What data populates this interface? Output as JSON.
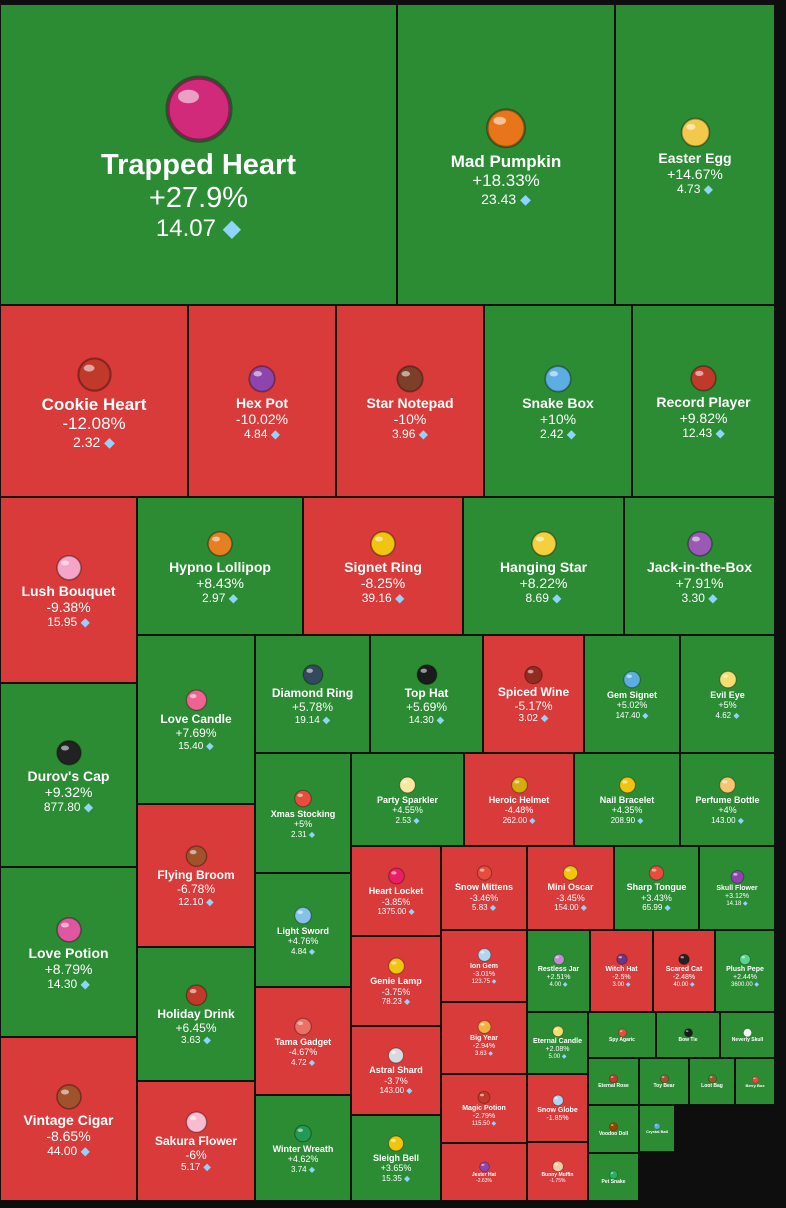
{
  "colors": {
    "up": "#2b8c34",
    "down": "#d93a3a",
    "border": "#111111",
    "diamond": "#8fd3ff"
  },
  "currency_icon": "diamond-icon",
  "chart_data": {
    "type": "treemap",
    "value_unit": "diamond",
    "items": [
      {
        "name": "Trapped Heart",
        "change": "+27.9%",
        "price": "14.07",
        "icon": "heart-in-web-icon",
        "color": "#d22a7a"
      },
      {
        "name": "Mad Pumpkin",
        "change": "+18.33%",
        "price": "23.43",
        "icon": "pumpkin-icon",
        "color": "#e8751a"
      },
      {
        "name": "Easter Egg",
        "change": "+14.67%",
        "price": "4.73",
        "icon": "easter-egg-icon",
        "color": "#f2c94c"
      },
      {
        "name": "Cookie Heart",
        "change": "-12.08%",
        "price": "2.32",
        "icon": "cookie-heart-icon",
        "color": "#c0392b"
      },
      {
        "name": "Hex Pot",
        "change": "-10.02%",
        "price": "4.84",
        "icon": "cauldron-icon",
        "color": "#8e44ad"
      },
      {
        "name": "Star Notepad",
        "change": "-10%",
        "price": "3.96",
        "icon": "notepad-icon",
        "color": "#7b3f2a"
      },
      {
        "name": "Snake Box",
        "change": "+10%",
        "price": "2.42",
        "icon": "gift-box-icon",
        "color": "#5dade2"
      },
      {
        "name": "Record Player",
        "change": "+9.82%",
        "price": "12.43",
        "icon": "record-player-icon",
        "color": "#c0392b"
      },
      {
        "name": "Lush Bouquet",
        "change": "-9.38%",
        "price": "15.95",
        "icon": "bouquet-icon",
        "color": "#f5a6c8"
      },
      {
        "name": "Hypno Lollipop",
        "change": "+8.43%",
        "price": "2.97",
        "icon": "lollipop-icon",
        "color": "#e67e22"
      },
      {
        "name": "Signet Ring",
        "change": "-8.25%",
        "price": "39.16",
        "icon": "ring-icon",
        "color": "#f1c40f"
      },
      {
        "name": "Hanging Star",
        "change": "+8.22%",
        "price": "8.69",
        "icon": "star-icon",
        "color": "#f4d03f"
      },
      {
        "name": "Jack-in-the-Box",
        "change": "+7.91%",
        "price": "3.30",
        "icon": "jack-in-the-box-icon",
        "color": "#9b59b6"
      },
      {
        "name": "Durov's Cap",
        "change": "+9.32%",
        "price": "877.80",
        "icon": "cap-icon",
        "color": "#222222"
      },
      {
        "name": "Love Candle",
        "change": "+7.69%",
        "price": "15.40",
        "icon": "candle-icon",
        "color": "#f06292"
      },
      {
        "name": "Diamond Ring",
        "change": "+5.78%",
        "price": "19.14",
        "icon": "ring-box-icon",
        "color": "#34495e"
      },
      {
        "name": "Top Hat",
        "change": "+5.69%",
        "price": "14.30",
        "icon": "top-hat-icon",
        "color": "#1b1b1b"
      },
      {
        "name": "Spiced Wine",
        "change": "-5.17%",
        "price": "3.02",
        "icon": "wine-glass-icon",
        "color": "#922b21"
      },
      {
        "name": "Gem Signet",
        "change": "+5.02%",
        "price": "147.40",
        "icon": "gem-signet-icon",
        "color": "#5dade2"
      },
      {
        "name": "Evil Eye",
        "change": "+5%",
        "price": "4.62",
        "icon": "evil-eye-icon",
        "color": "#f7dc6f"
      },
      {
        "name": "Xmas Stocking",
        "change": "+5%",
        "price": "2.31",
        "icon": "stocking-icon",
        "color": "#e74c3c"
      },
      {
        "name": "Party Sparkler",
        "change": "+4.55%",
        "price": "2.53",
        "icon": "sparkler-icon",
        "color": "#f9e79f"
      },
      {
        "name": "Heroic Helmet",
        "change": "-4.48%",
        "price": "262.00",
        "icon": "helmet-icon",
        "color": "#d4ac0d"
      },
      {
        "name": "Nail Bracelet",
        "change": "+4.35%",
        "price": "208.90",
        "icon": "bracelet-icon",
        "color": "#f1c40f"
      },
      {
        "name": "Perfume Bottle",
        "change": "+4%",
        "price": "143.00",
        "icon": "perfume-icon",
        "color": "#f8c471"
      },
      {
        "name": "Flying Broom",
        "change": "-6.78%",
        "price": "12.10",
        "icon": "broom-icon",
        "color": "#a0522d"
      },
      {
        "name": "Heart Locket",
        "change": "-3.85%",
        "price": "1375.00",
        "icon": "locket-icon",
        "color": "#e91e63"
      },
      {
        "name": "Snow Mittens",
        "change": "-3.46%",
        "price": "5.83",
        "icon": "mittens-icon",
        "color": "#e74c3c"
      },
      {
        "name": "Mini Oscar",
        "change": "-3.45%",
        "price": "154.00",
        "icon": "trophy-icon",
        "color": "#f1c40f"
      },
      {
        "name": "Sharp Tongue",
        "change": "+3.43%",
        "price": "65.99",
        "icon": "tongue-icon",
        "color": "#e74c3c"
      },
      {
        "name": "Skull Flower",
        "change": "+3.12%",
        "price": "14.18",
        "icon": "skull-flower-icon",
        "color": "#8e44ad"
      },
      {
        "name": "Love Potion",
        "change": "+8.79%",
        "price": "14.30",
        "icon": "potion-icon",
        "color": "#e056a0"
      },
      {
        "name": "Light Sword",
        "change": "+4.76%",
        "price": "4.84",
        "icon": "light-sword-icon",
        "color": "#85c1e9"
      },
      {
        "name": "Ion Gem",
        "change": "-3.01%",
        "price": "123.75",
        "icon": "ion-gem-icon",
        "color": "#aed6f1"
      },
      {
        "name": "Restless Jar",
        "change": "+2.51%",
        "price": "4.00",
        "icon": "jar-icon",
        "color": "#bb8fce"
      },
      {
        "name": "Witch Hat",
        "change": "-2.5%",
        "price": "3.00",
        "icon": "witch-hat-icon",
        "color": "#6c3483"
      },
      {
        "name": "Scared Cat",
        "change": "-2.48%",
        "price": "40.00",
        "icon": "cat-icon",
        "color": "#222222"
      },
      {
        "name": "Plush Pepe",
        "change": "+2.44%",
        "price": "3600.00",
        "icon": "frog-icon",
        "color": "#58d68d"
      },
      {
        "name": "Genie Lamp",
        "change": "-3.75%",
        "price": "78.23",
        "icon": "genie-lamp-icon",
        "color": "#f1c40f"
      },
      {
        "name": "Holiday Drink",
        "change": "+6.45%",
        "price": "3.63",
        "icon": "holiday-drink-icon",
        "color": "#c0392b"
      },
      {
        "name": "Tama Gadget",
        "change": "-4.67%",
        "price": "4.72",
        "icon": "tamagotchi-icon",
        "color": "#ec7063"
      },
      {
        "name": "Big Year",
        "change": "-2.94%",
        "price": "3.63",
        "icon": "big-year-icon",
        "color": "#f5b041"
      },
      {
        "name": "Eternal Candle",
        "change": "+2.08%",
        "price": "5.00",
        "icon": "eternal-candle-icon",
        "color": "#f7dc6f"
      },
      {
        "name": "Spy Agaric",
        "change": "",
        "price": "",
        "icon": "mushroom-icon",
        "color": "#e74c3c"
      },
      {
        "name": "Bow Tie",
        "change": "",
        "price": "",
        "icon": "bow-tie-icon",
        "color": "#1b1b1b"
      },
      {
        "name": "Neverly Skull",
        "change": "",
        "price": "",
        "icon": "skull-icon",
        "color": "#f2f3f4"
      },
      {
        "name": "Astral Shard",
        "change": "-3.7%",
        "price": "143.00",
        "icon": "astral-shard-icon",
        "color": "#d7dbdd"
      },
      {
        "name": "Magic Potion",
        "change": "-2.79%",
        "price": "115.50",
        "icon": "magic-potion-icon",
        "color": "#c0392b"
      },
      {
        "name": "Eternal Rose",
        "change": "",
        "price": "",
        "icon": "rose-icon",
        "color": "#c0392b"
      },
      {
        "name": "Toy Bear",
        "change": "",
        "price": "",
        "icon": "teddy-bear-icon",
        "color": "#a0522d"
      },
      {
        "name": "Loot Bag",
        "change": "",
        "price": "",
        "icon": "loot-bag-icon",
        "color": "#8e5a2a"
      },
      {
        "name": "Berry Box",
        "change": "",
        "price": "",
        "icon": "berry-box-icon",
        "color": "#e74c3c"
      },
      {
        "name": "Vintage Cigar",
        "change": "-8.65%",
        "price": "44.00",
        "icon": "cigar-icon",
        "color": "#a0522d"
      },
      {
        "name": "Sakura Flower",
        "change": "-6%",
        "price": "5.17",
        "icon": "sakura-icon",
        "color": "#f8bbd0"
      },
      {
        "name": "Winter Wreath",
        "change": "+4.62%",
        "price": "3.74",
        "icon": "wreath-icon",
        "color": "#229954"
      },
      {
        "name": "Sleigh Bell",
        "change": "+3.65%",
        "price": "15.35",
        "icon": "sleigh-bell-icon",
        "color": "#f1c40f"
      },
      {
        "name": "Snow Globe",
        "change": "-1.85%",
        "price": "",
        "icon": "snow-globe-icon",
        "color": "#aed6f1"
      },
      {
        "name": "Jester Hat",
        "change": "-2.63%",
        "price": "",
        "icon": "jester-hat-icon",
        "color": "#8e44ad"
      },
      {
        "name": "Bunny Muffin",
        "change": "-1.75%",
        "price": "",
        "icon": "muffin-icon",
        "color": "#f5cba7"
      },
      {
        "name": "Voodoo Doll",
        "change": "",
        "price": "",
        "icon": "voodoo-doll-icon",
        "color": "#a04000"
      },
      {
        "name": "Crystal Ball",
        "change": "",
        "price": "",
        "icon": "crystal-ball-icon",
        "color": "#5dade2"
      },
      {
        "name": "Pet Snake",
        "change": "",
        "price": "",
        "icon": "snake-icon",
        "color": "#27ae60"
      }
    ]
  }
}
